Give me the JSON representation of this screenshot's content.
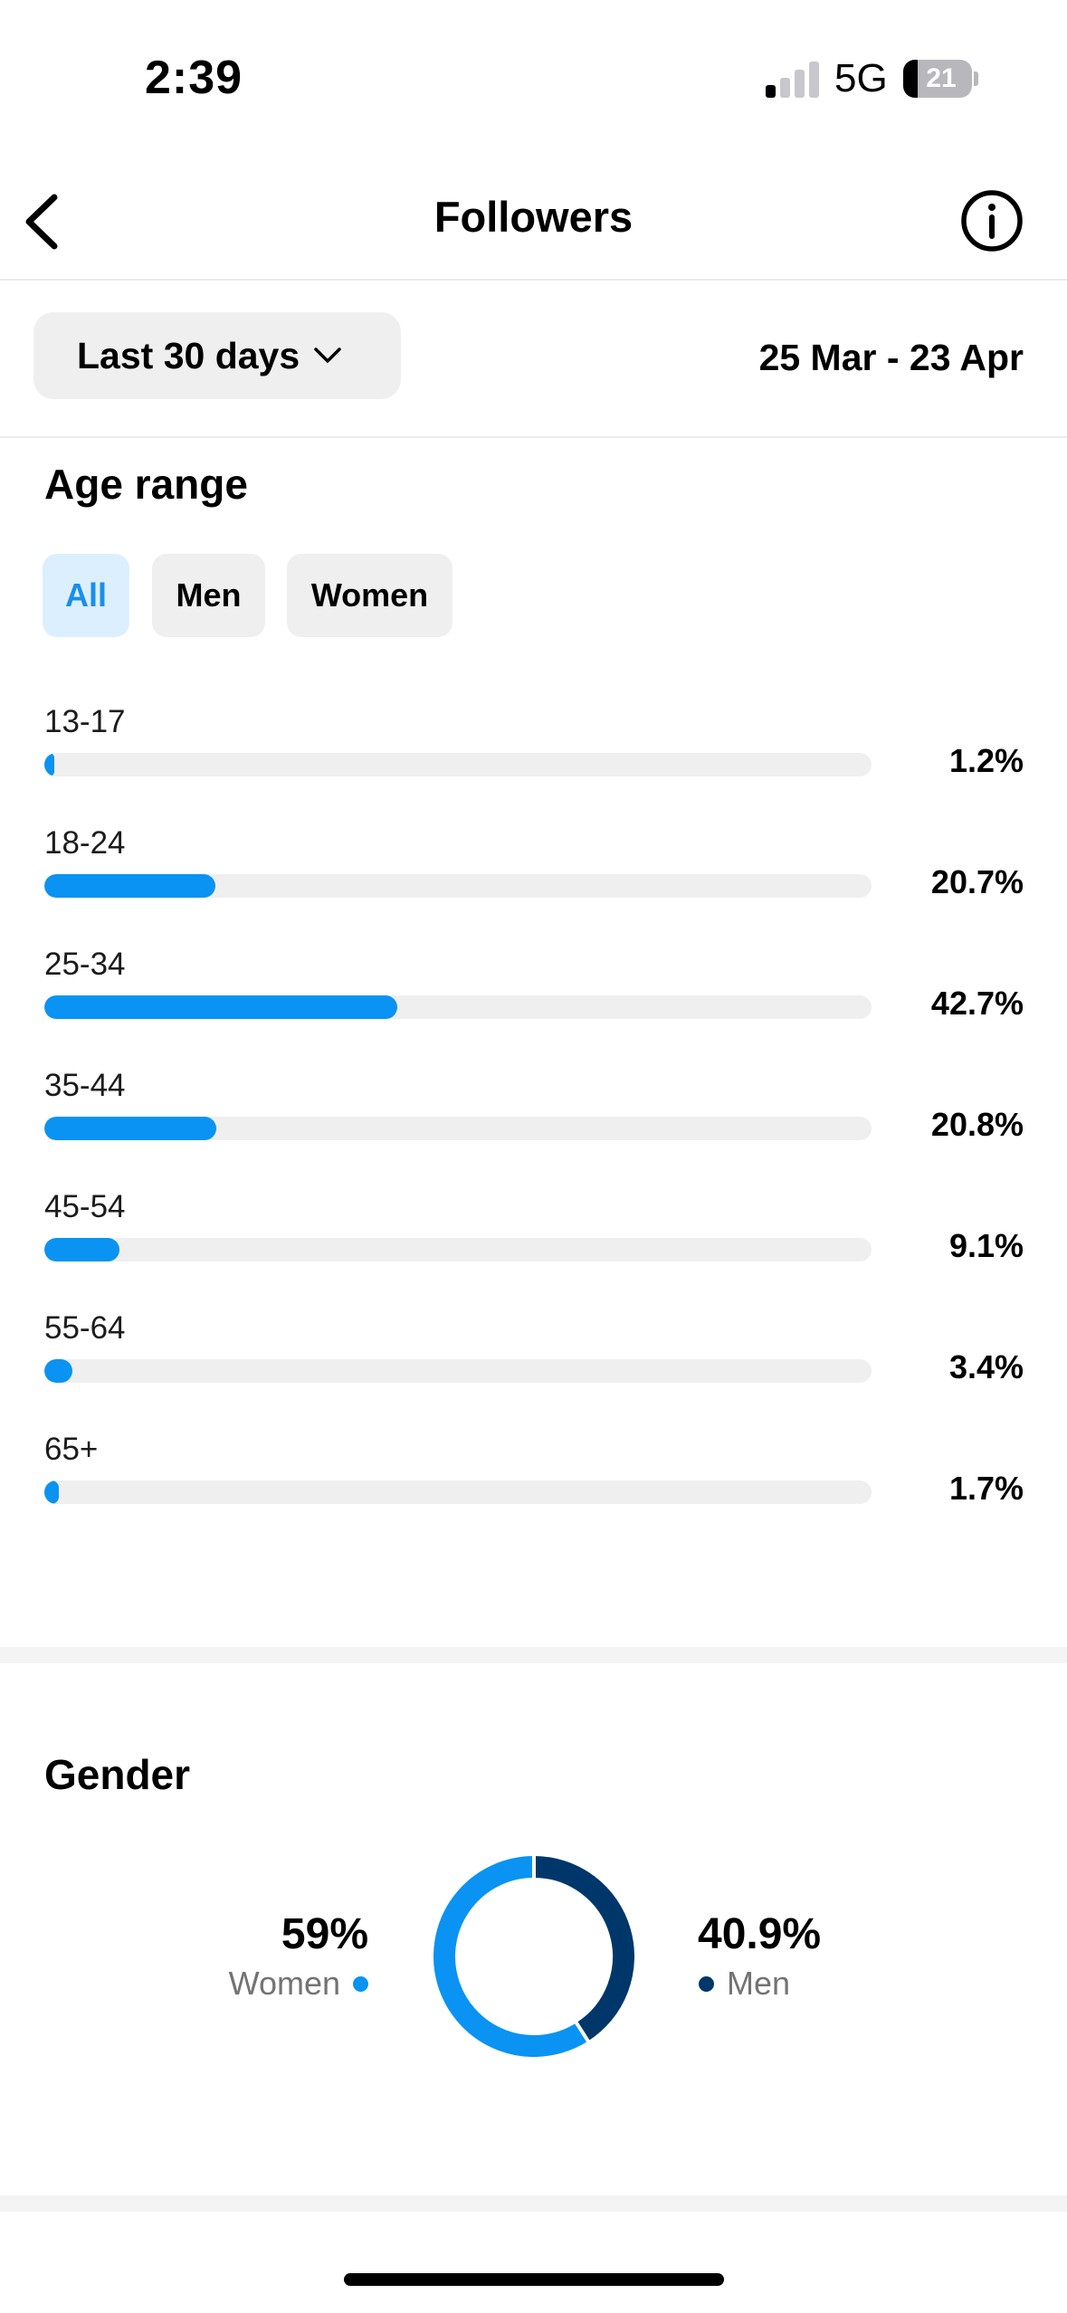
{
  "status_bar": {
    "time": "2:39",
    "network": "5G",
    "battery": "21"
  },
  "header": {
    "title": "Followers"
  },
  "filter": {
    "period_label": "Last 30 days",
    "date_range": "25 Mar - 23 Apr"
  },
  "age_range": {
    "title": "Age range",
    "tabs": [
      {
        "label": "All",
        "active": true
      },
      {
        "label": "Men",
        "active": false
      },
      {
        "label": "Women",
        "active": false
      }
    ],
    "rows": [
      {
        "label": "13-17",
        "value_text": "1.2%"
      },
      {
        "label": "18-24",
        "value_text": "20.7%"
      },
      {
        "label": "25-34",
        "value_text": "42.7%"
      },
      {
        "label": "35-44",
        "value_text": "20.8%"
      },
      {
        "label": "45-54",
        "value_text": "9.1%"
      },
      {
        "label": "55-64",
        "value_text": "3.4%"
      },
      {
        "label": "65+",
        "value_text": "1.7%"
      }
    ]
  },
  "gender": {
    "title": "Gender",
    "women": {
      "value_text": "59%",
      "label": "Women",
      "percent": 59
    },
    "men": {
      "value_text": "40.9%",
      "label": "Men",
      "percent": 40.9
    }
  },
  "chart_data": [
    {
      "type": "bar",
      "categories": [
        "13-17",
        "18-24",
        "25-34",
        "35-44",
        "45-54",
        "55-64",
        "65+"
      ],
      "values": [
        1.2,
        20.7,
        42.7,
        20.8,
        9.1,
        3.4,
        1.7
      ],
      "title": "Age range",
      "xlim": [
        0,
        100
      ]
    },
    {
      "type": "pie",
      "categories": [
        "Women",
        "Men"
      ],
      "values": [
        59,
        40.9
      ],
      "title": "Gender"
    }
  ],
  "colors": {
    "accent": "#0a93f2",
    "men": "#00376b",
    "track": "#efefef",
    "tab_active_bg": "#dcefff"
  },
  "icons": {
    "back": "chevron-left-icon",
    "info": "info-circle-icon",
    "dropdown": "chevron-down-icon"
  }
}
